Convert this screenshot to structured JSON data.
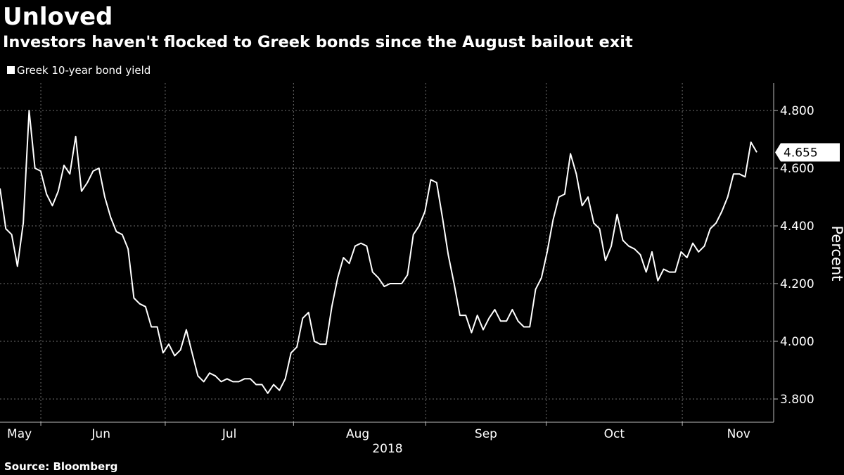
{
  "title": "Unloved",
  "subtitle": "Investors haven't flocked to Greek bonds since the August bailout exit",
  "legend_label": "Greek 10-year bond yield",
  "source": "Source: Bloomberg",
  "colors": {
    "background": "#000000",
    "line": "#ffffff",
    "grid": "#6e6e6e",
    "axis": "#bdbdbd"
  },
  "chart_data": {
    "type": "line",
    "title": "Unloved",
    "subtitle": "Investors haven't flocked to Greek bonds since the August bailout exit",
    "xlabel": "2018",
    "ylabel": "Percent",
    "ylim": [
      3.7,
      4.9
    ],
    "yticks": [
      3.8,
      4.0,
      4.2,
      4.4,
      4.6,
      4.8
    ],
    "ytick_labels": [
      "3.800",
      "4.000",
      "4.200",
      "4.400",
      "4.600",
      "4.800"
    ],
    "x_range": [
      0,
      199
    ],
    "month_labels": [
      "May",
      "Jun",
      "Jul",
      "Aug",
      "Sep",
      "Oct",
      "Nov"
    ],
    "month_label_positions": [
      5,
      26,
      59,
      92,
      125,
      158,
      190
    ],
    "month_boundaries": [
      10.5,
      42.5,
      75.5,
      109.5,
      140.5,
      175.5
    ],
    "year_label": "2018",
    "last_value": 4.655,
    "last_value_label": "4.655",
    "grid": true,
    "series": [
      {
        "name": "Greek 10-year bond yield",
        "values": [
          4.53,
          4.39,
          4.37,
          4.26,
          4.41,
          4.8,
          4.6,
          4.59,
          4.51,
          4.47,
          4.52,
          4.61,
          4.58,
          4.71,
          4.52,
          4.55,
          4.59,
          4.6,
          4.5,
          4.43,
          4.38,
          4.37,
          4.32,
          4.15,
          4.13,
          4.12,
          4.05,
          4.05,
          3.96,
          3.99,
          3.95,
          3.97,
          4.04,
          3.96,
          3.88,
          3.86,
          3.89,
          3.88,
          3.86,
          3.87,
          3.86,
          3.86,
          3.87,
          3.87,
          3.85,
          3.85,
          3.82,
          3.85,
          3.83,
          3.87,
          3.96,
          3.98,
          4.08,
          4.1,
          4.0,
          3.99,
          3.99,
          4.12,
          4.22,
          4.29,
          4.27,
          4.33,
          4.34,
          4.33,
          4.24,
          4.22,
          4.19,
          4.2,
          4.2,
          4.2,
          4.23,
          4.37,
          4.4,
          4.45,
          4.56,
          4.55,
          4.43,
          4.3,
          4.2,
          4.09,
          4.09,
          4.03,
          4.09,
          4.04,
          4.08,
          4.11,
          4.07,
          4.07,
          4.11,
          4.07,
          4.05,
          4.05,
          4.18,
          4.22,
          4.31,
          4.42,
          4.5,
          4.51,
          4.65,
          4.58,
          4.47,
          4.5,
          4.41,
          4.39,
          4.28,
          4.33,
          4.44,
          4.35,
          4.33,
          4.32,
          4.3,
          4.24,
          4.31,
          4.21,
          4.25,
          4.24,
          4.24,
          4.31,
          4.29,
          4.34,
          4.31,
          4.33,
          4.39,
          4.41,
          4.45,
          4.5,
          4.58,
          4.58,
          4.57,
          4.69,
          4.655
        ]
      }
    ]
  }
}
